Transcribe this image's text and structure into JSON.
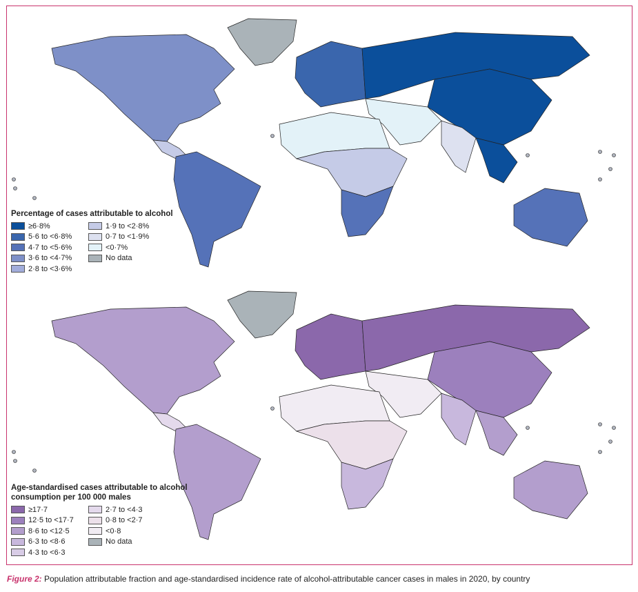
{
  "top_map": {
    "legend_title": "Percentage of cases attributable to alcohol",
    "legend": [
      {
        "label": "≥6·8%",
        "color": "#0b4f9b"
      },
      {
        "label": "5·6 to <6·8%",
        "color": "#3a66ad"
      },
      {
        "label": "4·7 to <5·6%",
        "color": "#5572b8"
      },
      {
        "label": "3·6 to <4·7%",
        "color": "#7e90c8"
      },
      {
        "label": "2·8 to <3·6%",
        "color": "#a2addb"
      },
      {
        "label": "1·9 to <2·8%",
        "color": "#c5cbe7"
      },
      {
        "label": "0·7 to <1·9%",
        "color": "#dde1f0"
      },
      {
        "label": "<0·7%",
        "color": "#e3f2f8"
      },
      {
        "label": "No data",
        "color": "#aab3b8"
      }
    ],
    "region_classes": {
      "north_america": 3,
      "greenland": 8,
      "south_america": 2,
      "europe": 1,
      "russia": 0,
      "east_asia": 0,
      "north_africa": 7,
      "sub_saharan_africa": 5,
      "southern_africa": 2,
      "middle_east": 7,
      "south_asia": 6,
      "southeast_asia": 0,
      "australia": 2,
      "central_america": 5
    }
  },
  "bottom_map": {
    "legend_title_line1": "Age-standardised cases attributable to alcohol",
    "legend_title_line2": "consumption per 100 000 males",
    "legend": [
      {
        "label": "≥17·7",
        "color": "#8b68ab"
      },
      {
        "label": "12·5 to <17·7",
        "color": "#9c80bd"
      },
      {
        "label": "8·6 to <12·5",
        "color": "#b39ecd"
      },
      {
        "label": "6·3 to <8·6",
        "color": "#c8b8dd"
      },
      {
        "label": "4·3 to <6·3",
        "color": "#d8cce6"
      },
      {
        "label": "2·7 to <4·3",
        "color": "#e4d9ec"
      },
      {
        "label": "0·8 to <2·7",
        "color": "#ece0ea"
      },
      {
        "label": "<0·8",
        "color": "#f1ecf3"
      },
      {
        "label": "No data",
        "color": "#aab3b8"
      }
    ],
    "region_classes": {
      "north_america": 2,
      "greenland": 8,
      "south_america": 2,
      "europe": 0,
      "russia": 0,
      "east_asia": 1,
      "north_africa": 7,
      "sub_saharan_africa": 6,
      "southern_africa": 3,
      "middle_east": 7,
      "south_asia": 3,
      "southeast_asia": 2,
      "australia": 2,
      "central_america": 5
    }
  },
  "caption": {
    "label": "Figure 2:",
    "text": " Population attributable fraction and age-standardised incidence rate of alcohol-attributable cancer cases in males in 2020, by country"
  }
}
